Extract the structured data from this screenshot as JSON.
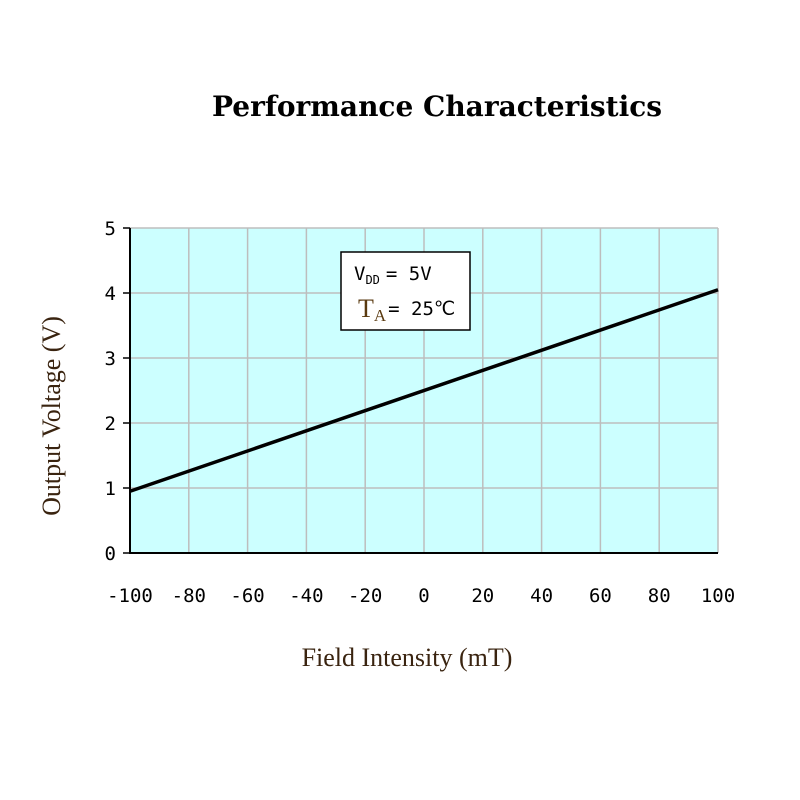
{
  "chart_data": {
    "type": "line",
    "title": "Performance Characteristics",
    "xlabel": "Field Intensity (mT)",
    "ylabel": "Output Voltage (V)",
    "xlim": [
      -100,
      100
    ],
    "ylim": [
      0,
      5
    ],
    "x_ticks": [
      -100,
      -80,
      -60,
      -40,
      -20,
      0,
      20,
      40,
      60,
      80,
      100
    ],
    "x_tick_labels": [
      "-100",
      "-80",
      "-60",
      "-40",
      "-20",
      "0",
      "20",
      "40",
      "60",
      "80",
      "100"
    ],
    "y_ticks": [
      0,
      1,
      2,
      3,
      4,
      5
    ],
    "y_tick_labels": [
      "0",
      "1",
      "2",
      "3",
      "4",
      "5"
    ],
    "grid": true,
    "plot_background": "#ccffff",
    "grid_color": "#bdbdbd",
    "line_color": "#000000",
    "series": [
      {
        "x": [
          -100,
          100
        ],
        "y": [
          0.95,
          4.05
        ]
      }
    ],
    "legend": {
      "placement": "top-center",
      "vdd_symbol": "V",
      "vdd_subscript": "DD",
      "vdd_value": "= 5V",
      "ta_symbol": "T",
      "ta_subscript": "A",
      "ta_value": "= 25℃"
    }
  }
}
